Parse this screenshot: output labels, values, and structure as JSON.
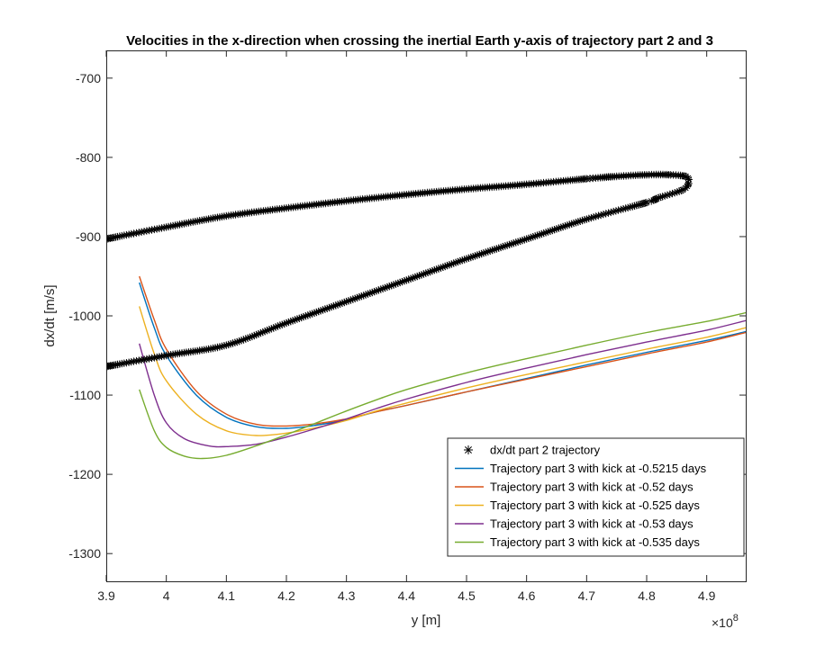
{
  "chart_data": {
    "type": "line",
    "title": "Velocities in the x-direction when crossing the inertial Earth y-axis of trajectory part 2 and 3",
    "xlabel": "y [m]",
    "ylabel": "dx/dt [m/s]",
    "x_exponent_label": "×10",
    "x_exponent_power": "8",
    "xlim": [
      3.9,
      4.965
    ],
    "ylim": [
      -1335,
      -665
    ],
    "x_scale": 100000000,
    "xticks": [
      3.9,
      4.0,
      4.1,
      4.2,
      4.3,
      4.4,
      4.5,
      4.6,
      4.7,
      4.8,
      4.9
    ],
    "xtick_labels": [
      "3.9",
      "4",
      "4.1",
      "4.2",
      "4.3",
      "4.4",
      "4.5",
      "4.6",
      "4.7",
      "4.8",
      "4.9"
    ],
    "yticks": [
      -700,
      -800,
      -900,
      -1000,
      -1100,
      -1200,
      -1300
    ],
    "ytick_labels": [
      "-700",
      "-800",
      "-900",
      "-1000",
      "-1100",
      "-1200",
      "-1300"
    ],
    "grid": false,
    "legend_position": "bottom-right",
    "marker_series": {
      "name": "dx/dt part 2 trajectory",
      "color": "#000000",
      "marker": "asterisk",
      "upper_branch": {
        "x": [
          3.9,
          4.0,
          4.1,
          4.2,
          4.3,
          4.4,
          4.5,
          4.6,
          4.7,
          4.75,
          4.8,
          4.84,
          4.865,
          4.87
        ],
        "y": [
          -903,
          -888,
          -874,
          -864,
          -855,
          -847,
          -840,
          -834,
          -827,
          -824,
          -822,
          -822,
          -824,
          -828
        ]
      },
      "lower_branch": {
        "x": [
          4.87,
          4.86,
          4.82,
          4.8,
          4.7,
          4.6,
          4.5,
          4.4,
          4.3,
          4.2,
          4.1,
          4.0,
          3.9
        ],
        "y": [
          -833,
          -841,
          -851,
          -857,
          -878,
          -903,
          -928,
          -955,
          -982,
          -1009,
          -1037,
          -1050,
          -1064
        ]
      }
    },
    "series": [
      {
        "name": "Trajectory part 3 with kick at -0.5215 days",
        "color": "#0072BD",
        "x": [
          3.955,
          3.98,
          4.0,
          4.05,
          4.1,
          4.15,
          4.2,
          4.25,
          4.3,
          4.35,
          4.4,
          4.5,
          4.6,
          4.7,
          4.8,
          4.9,
          4.965
        ],
        "y": [
          -958,
          -1015,
          -1050,
          -1100,
          -1128,
          -1140,
          -1142,
          -1138,
          -1131,
          -1121,
          -1113,
          -1096,
          -1079,
          -1062,
          -1046,
          -1031,
          -1020
        ]
      },
      {
        "name": "Trajectory part 3 with kick at -0.52 days",
        "color": "#D95319",
        "x": [
          3.955,
          3.98,
          4.0,
          4.05,
          4.1,
          4.15,
          4.2,
          4.25,
          4.3,
          4.35,
          4.4,
          4.5,
          4.6,
          4.7,
          4.8,
          4.9,
          4.965
        ],
        "y": [
          -950,
          -1005,
          -1042,
          -1095,
          -1124,
          -1137,
          -1139,
          -1136,
          -1130,
          -1121,
          -1113,
          -1096,
          -1080,
          -1064,
          -1048,
          -1033,
          -1021
        ]
      },
      {
        "name": "Trajectory part 3 with kick at -0.525 days",
        "color": "#EDB120",
        "x": [
          3.955,
          3.98,
          4.0,
          4.05,
          4.1,
          4.15,
          4.2,
          4.25,
          4.3,
          4.35,
          4.4,
          4.5,
          4.6,
          4.7,
          4.8,
          4.9,
          4.965
        ],
        "y": [
          -988,
          -1048,
          -1082,
          -1124,
          -1145,
          -1151,
          -1148,
          -1141,
          -1132,
          -1120,
          -1110,
          -1091,
          -1074,
          -1058,
          -1042,
          -1027,
          -1015
        ]
      },
      {
        "name": "Trajectory part 3 with kick at -0.53 days",
        "color": "#7E2F8E",
        "x": [
          3.955,
          3.98,
          4.0,
          4.03,
          4.07,
          4.1,
          4.15,
          4.2,
          4.25,
          4.3,
          4.35,
          4.4,
          4.5,
          4.6,
          4.7,
          4.8,
          4.9,
          4.965
        ],
        "y": [
          -1035,
          -1100,
          -1135,
          -1155,
          -1164,
          -1165,
          -1162,
          -1153,
          -1142,
          -1130,
          -1117,
          -1105,
          -1084,
          -1066,
          -1049,
          -1033,
          -1018,
          -1006
        ]
      },
      {
        "name": "Trajectory part 3 with kick at -0.535 days",
        "color": "#77AC30",
        "x": [
          3.955,
          3.98,
          4.0,
          4.03,
          4.06,
          4.1,
          4.15,
          4.2,
          4.25,
          4.3,
          4.35,
          4.4,
          4.5,
          4.6,
          4.7,
          4.8,
          4.9,
          4.965
        ],
        "y": [
          -1093,
          -1145,
          -1166,
          -1177,
          -1180,
          -1176,
          -1164,
          -1150,
          -1135,
          -1120,
          -1106,
          -1093,
          -1072,
          -1054,
          -1037,
          -1021,
          -1007,
          -996
        ]
      }
    ]
  }
}
